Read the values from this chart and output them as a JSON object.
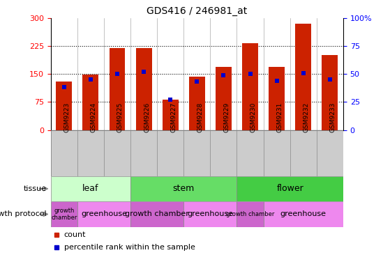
{
  "title": "GDS416 / 246981_at",
  "samples": [
    "GSM9223",
    "GSM9224",
    "GSM9225",
    "GSM9226",
    "GSM9227",
    "GSM9228",
    "GSM9229",
    "GSM9230",
    "GSM9231",
    "GSM9232",
    "GSM9233"
  ],
  "counts": [
    130,
    148,
    220,
    220,
    82,
    142,
    168,
    232,
    168,
    285,
    200
  ],
  "percentiles": [
    38,
    45,
    50,
    52,
    27,
    43,
    49,
    50,
    44,
    51,
    45
  ],
  "ylim_left": [
    0,
    300
  ],
  "ylim_right": [
    0,
    100
  ],
  "yticks_left": [
    0,
    75,
    150,
    225,
    300
  ],
  "yticks_right": [
    0,
    25,
    50,
    75,
    100
  ],
  "bar_color": "#CC2200",
  "percentile_color": "#0000CC",
  "tissue_groups": [
    {
      "label": "leaf",
      "start": 0,
      "end": 3,
      "color": "#CCFFCC"
    },
    {
      "label": "stem",
      "start": 3,
      "end": 7,
      "color": "#66DD66"
    },
    {
      "label": "flower",
      "start": 7,
      "end": 11,
      "color": "#44CC44"
    }
  ],
  "growth_protocol_groups": [
    {
      "label": "growth\nchamber",
      "start": 0,
      "end": 1,
      "color": "#CC66CC"
    },
    {
      "label": "greenhouse",
      "start": 1,
      "end": 3,
      "color": "#EE88EE"
    },
    {
      "label": "growth chamber",
      "start": 3,
      "end": 5,
      "color": "#CC66CC"
    },
    {
      "label": "greenhouse",
      "start": 5,
      "end": 7,
      "color": "#EE88EE"
    },
    {
      "label": "growth chamber",
      "start": 7,
      "end": 8,
      "color": "#CC66CC"
    },
    {
      "label": "greenhouse",
      "start": 8,
      "end": 11,
      "color": "#EE88EE"
    }
  ],
  "tissue_label": "tissue",
  "growth_label": "growth protocol",
  "legend_count_label": "count",
  "legend_percentile_label": "percentile rank within the sample",
  "xlabel_bg_color": "#CCCCCC",
  "bar_width": 0.6
}
